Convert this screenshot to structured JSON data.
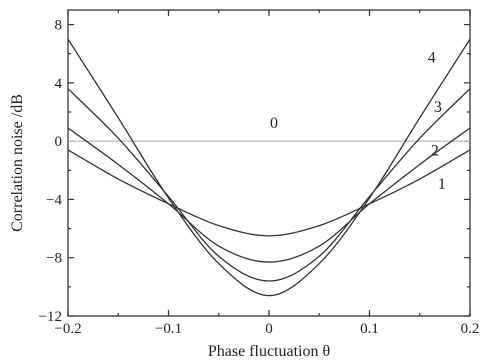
{
  "chart_data": {
    "type": "line",
    "xlabel": "Phase fluctuation θ",
    "ylabel": "Correlation noise /dB",
    "xlim": [
      -0.2,
      0.2
    ],
    "ylim": [
      -12,
      9
    ],
    "xticks": [
      -0.2,
      -0.1,
      0,
      0.1,
      0.2
    ],
    "xtick_labels": [
      "−0.2",
      "−0.1",
      "0",
      "0.1",
      "0.2"
    ],
    "yticks": [
      -12,
      -8,
      -4,
      0,
      4,
      8
    ],
    "ytick_labels": [
      "−12",
      "−8",
      "−4",
      "0",
      "4",
      "8"
    ],
    "grid": false,
    "series": [
      {
        "name": "0",
        "x": [
          -0.2,
          -0.15,
          -0.1,
          -0.05,
          0,
          0.05,
          0.1,
          0.15,
          0.2
        ],
        "values": [
          0,
          0,
          0,
          0,
          0,
          0,
          0,
          0,
          0
        ],
        "color": "#bbbbbb"
      },
      {
        "name": "1",
        "x": [
          -0.2,
          -0.15,
          -0.1,
          -0.05,
          0,
          0.05,
          0.1,
          0.15,
          0.2
        ],
        "values": [
          -0.6,
          -2.6,
          -4.3,
          -5.8,
          -6.5,
          -5.8,
          -4.3,
          -2.6,
          -0.6
        ],
        "color": "#333333"
      },
      {
        "name": "2",
        "x": [
          -0.2,
          -0.15,
          -0.1,
          -0.05,
          0,
          0.05,
          0.1,
          0.15,
          0.2
        ],
        "values": [
          0.9,
          -1.6,
          -4.3,
          -7.2,
          -8.3,
          -7.2,
          -4.3,
          -1.6,
          0.9
        ],
        "color": "#333333"
      },
      {
        "name": "3",
        "x": [
          -0.2,
          -0.15,
          -0.1,
          -0.05,
          0,
          0.05,
          0.1,
          0.15,
          0.2
        ],
        "values": [
          3.6,
          0.2,
          -3.8,
          -7.9,
          -9.6,
          -7.9,
          -3.8,
          0.2,
          3.6
        ],
        "color": "#333333"
      },
      {
        "name": "4",
        "x": [
          -0.2,
          -0.15,
          -0.1,
          -0.05,
          0,
          0.05,
          0.1,
          0.15,
          0.2
        ],
        "values": [
          7.0,
          1.6,
          -3.9,
          -8.4,
          -10.6,
          -8.4,
          -3.9,
          1.6,
          7.0
        ],
        "color": "#333333"
      }
    ]
  }
}
